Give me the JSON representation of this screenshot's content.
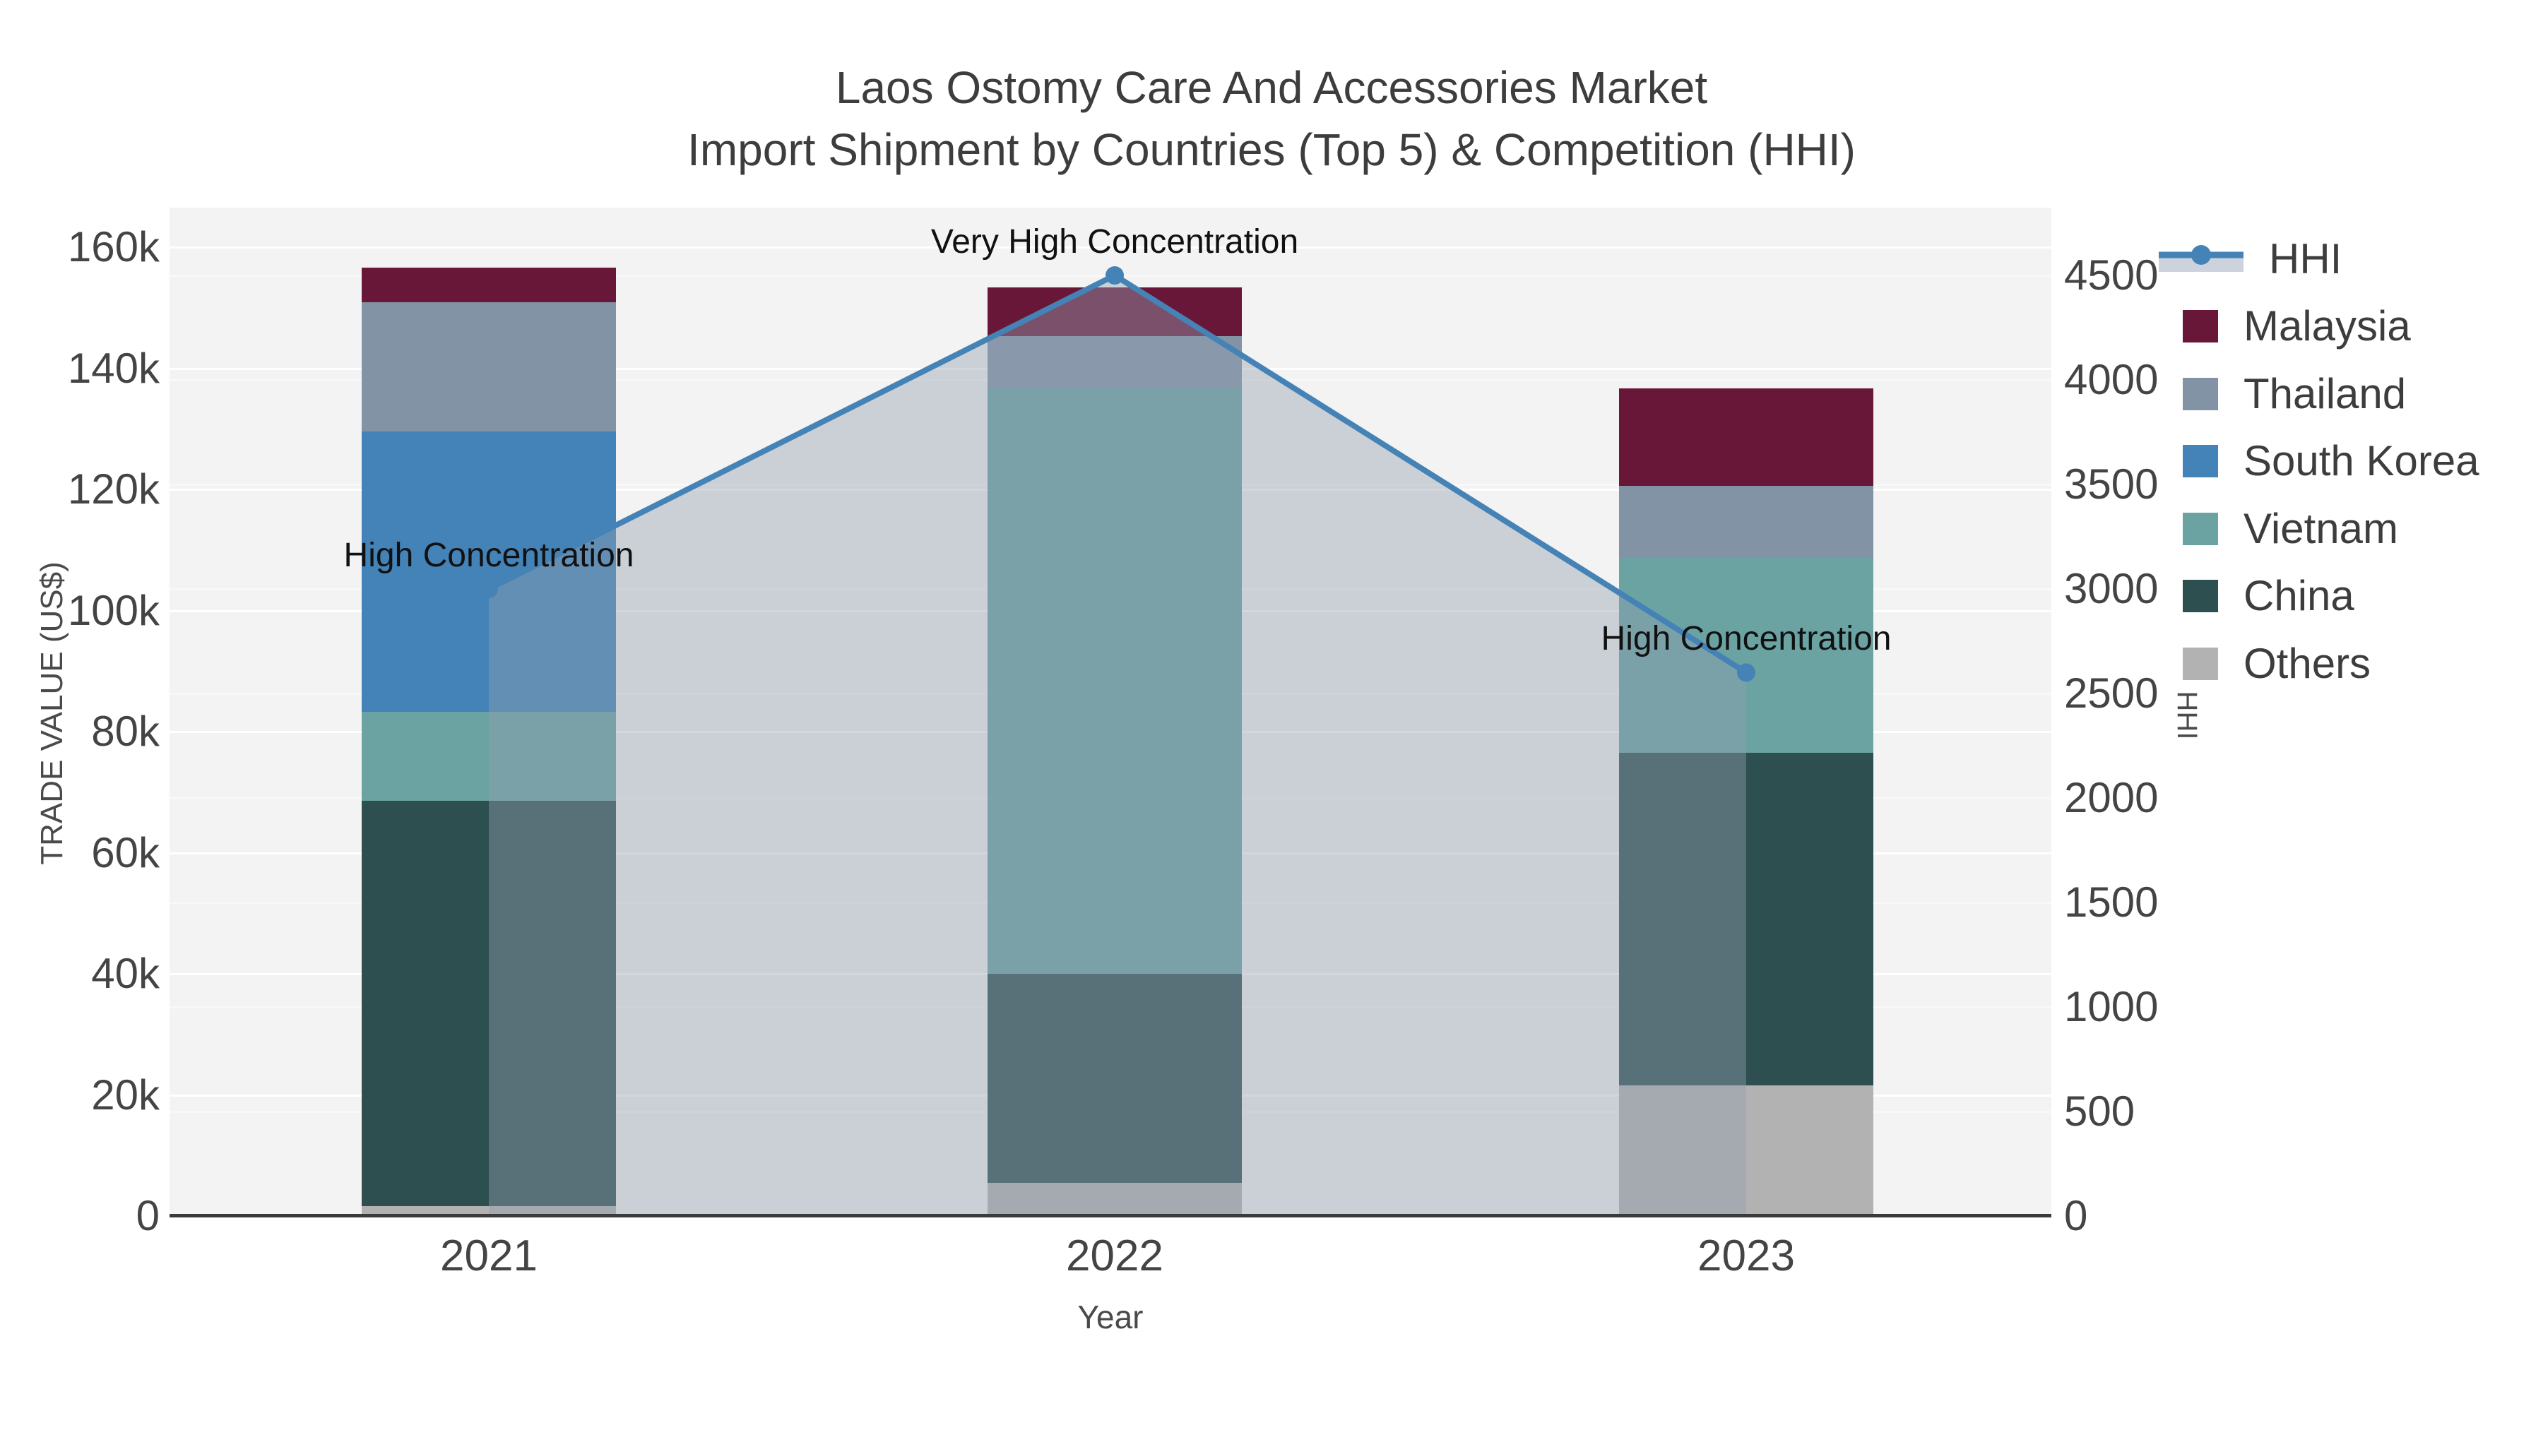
{
  "title": {
    "line1": "Laos Ostomy Care And Accessories Market",
    "line2": "Import Shipment by Countries (Top 5) & Competition (HHI)"
  },
  "axes": {
    "x": {
      "title": "Year",
      "categories": [
        "2021",
        "2022",
        "2023"
      ]
    },
    "y_left": {
      "title": "TRADE VALUE (US$)",
      "tick_labels": [
        "0",
        "20k",
        "40k",
        "60k",
        "80k",
        "100k",
        "120k",
        "140k",
        "160k"
      ],
      "tick_values": [
        0,
        20000,
        40000,
        60000,
        80000,
        100000,
        120000,
        140000,
        160000
      ],
      "range": [
        0,
        166500
      ]
    },
    "y_right": {
      "title": "HHI",
      "tick_labels": [
        "0",
        "500",
        "1000",
        "1500",
        "2000",
        "2500",
        "3000",
        "3500",
        "4000",
        "4500"
      ],
      "tick_values": [
        0,
        500,
        1000,
        1500,
        2000,
        2500,
        3000,
        3500,
        4000,
        4500
      ],
      "range": [
        0,
        4825
      ]
    }
  },
  "legend": {
    "items": [
      {
        "id": "hhi",
        "label": "HHI",
        "type": "line",
        "color": "#4583b7",
        "band_color": "#ccd3dc"
      },
      {
        "id": "malaysia",
        "label": "Malaysia",
        "type": "bar",
        "color": "#691738"
      },
      {
        "id": "thailand",
        "label": "Thailand",
        "type": "bar",
        "color": "#8193a5"
      },
      {
        "id": "south-korea",
        "label": "South Korea",
        "type": "bar",
        "color": "#4383b8"
      },
      {
        "id": "vietnam",
        "label": "Vietnam",
        "type": "bar",
        "color": "#6aa3a2"
      },
      {
        "id": "china",
        "label": "China",
        "type": "bar",
        "color": "#2d4f4f"
      },
      {
        "id": "others",
        "label": "Others",
        "type": "bar",
        "color": "#b2b2b2"
      }
    ]
  },
  "chart_data": {
    "type": "bar",
    "subtype": "stacked-bars-with-line-overlay",
    "categories": [
      "2021",
      "2022",
      "2023"
    ],
    "bar_value_unit": "US$ (trade value)",
    "stack_order_bottom_to_top": [
      "Others",
      "China",
      "Vietnam",
      "South Korea",
      "Thailand",
      "Malaysia"
    ],
    "series": [
      {
        "name": "Malaysia",
        "type": "bar",
        "color": "#691738",
        "values": [
          5700,
          8000,
          16100
        ]
      },
      {
        "name": "Thailand",
        "type": "bar",
        "color": "#8193a5",
        "values": [
          21300,
          8400,
          11900
        ]
      },
      {
        "name": "South Korea",
        "type": "bar",
        "color": "#4383b8",
        "values": [
          46300,
          0,
          0
        ]
      },
      {
        "name": "Vietnam",
        "type": "bar",
        "color": "#6aa3a2",
        "values": [
          14700,
          96900,
          32200
        ]
      },
      {
        "name": "China",
        "type": "bar",
        "color": "#2d4f4f",
        "values": [
          67000,
          34500,
          54900
        ]
      },
      {
        "name": "Others",
        "type": "bar",
        "color": "#b2b2b2",
        "values": [
          1600,
          5500,
          21600
        ]
      }
    ],
    "bar_totals": [
      156600,
      153300,
      136700
    ],
    "line_series": {
      "name": "HHI",
      "type": "line+area",
      "axis": "right",
      "color": "#4583b7",
      "area_fill": "rgba(148,160,177,0.42)",
      "values": [
        3000,
        4500,
        2600
      ]
    },
    "annotations": [
      {
        "category": "2021",
        "text": "High Concentration"
      },
      {
        "category": "2022",
        "text": "Very High Concentration"
      },
      {
        "category": "2023",
        "text": "High Concentration"
      }
    ],
    "title": "Laos Ostomy Care And Accessories Market — Import Shipment by Countries (Top 5) & Competition (HHI)",
    "xlabel": "Year",
    "ylabel_left": "TRADE VALUE (US$)",
    "ylabel_right": "HHI",
    "ylim_left": [
      0,
      160000
    ],
    "ylim_right": [
      0,
      4500
    ],
    "grid": true,
    "legend_position": "right",
    "plot_bg": "#f2f3f2"
  }
}
